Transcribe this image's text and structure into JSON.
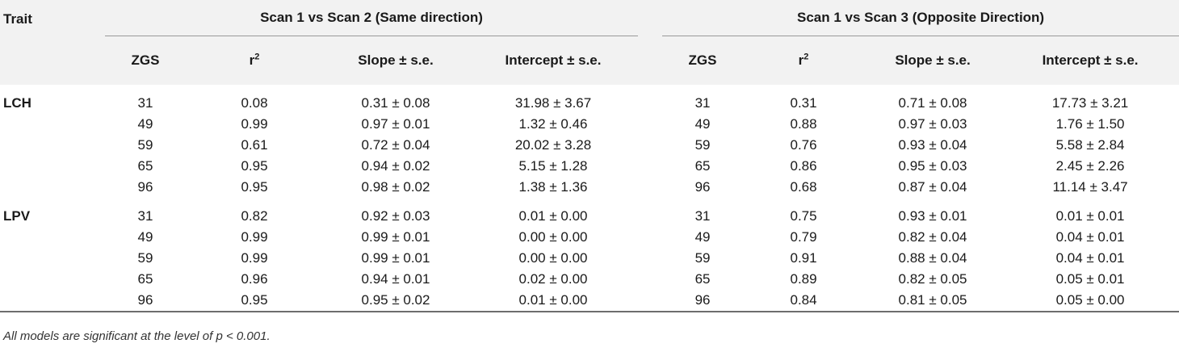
{
  "header": {
    "trait": "Trait",
    "group1": "Scan 1 vs Scan 2 (Same direction)",
    "group2": "Scan 1 vs Scan 3 (Opposite Direction)",
    "cols": [
      "ZGS",
      "r",
      "Slope ± s.e.",
      "Intercept ± s.e."
    ],
    "r_sup": "2"
  },
  "groups": [
    {
      "trait": "LCH",
      "rows": [
        [
          "31",
          "0.08",
          "0.31 ± 0.08",
          "31.98 ± 3.67",
          "31",
          "0.31",
          "0.71 ± 0.08",
          "17.73 ± 3.21"
        ],
        [
          "49",
          "0.99",
          "0.97 ± 0.01",
          "1.32 ± 0.46",
          "49",
          "0.88",
          "0.97 ± 0.03",
          "1.76 ± 1.50"
        ],
        [
          "59",
          "0.61",
          "0.72 ± 0.04",
          "20.02 ± 3.28",
          "59",
          "0.76",
          "0.93 ± 0.04",
          "5.58 ± 2.84"
        ],
        [
          "65",
          "0.95",
          "0.94 ± 0.02",
          "5.15 ± 1.28",
          "65",
          "0.86",
          "0.95 ± 0.03",
          "2.45 ± 2.26"
        ],
        [
          "96",
          "0.95",
          "0.98 ± 0.02",
          "1.38 ± 1.36",
          "96",
          "0.68",
          "0.87 ± 0.04",
          "11.14 ± 3.47"
        ]
      ]
    },
    {
      "trait": "LPV",
      "rows": [
        [
          "31",
          "0.82",
          "0.92 ± 0.03",
          "0.01 ± 0.00",
          "31",
          "0.75",
          "0.93 ± 0.01",
          "0.01 ± 0.01"
        ],
        [
          "49",
          "0.99",
          "0.99 ± 0.01",
          "0.00 ± 0.00",
          "49",
          "0.79",
          "0.82 ± 0.04",
          "0.04 ± 0.01"
        ],
        [
          "59",
          "0.99",
          "0.99 ± 0.01",
          "0.00 ± 0.00",
          "59",
          "0.91",
          "0.88 ± 0.04",
          "0.04 ± 0.01"
        ],
        [
          "65",
          "0.96",
          "0.94 ± 0.01",
          "0.02 ± 0.00",
          "65",
          "0.89",
          "0.82 ± 0.05",
          "0.05 ± 0.01"
        ],
        [
          "96",
          "0.95",
          "0.95 ± 0.02",
          "0.01 ± 0.00",
          "96",
          "0.84",
          "0.81 ± 0.05",
          "0.05 ± 0.00"
        ]
      ]
    }
  ],
  "note": "All models are significant at the level of p < 0.001."
}
